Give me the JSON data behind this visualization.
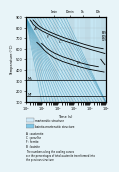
{
  "bg_color": "#e8f4f8",
  "plot_bg": "#d0eaf5",
  "xmin": 1,
  "xmax": 100000,
  "ymin": 100,
  "ymax": 900,
  "ylabel": "Temperature (°C)",
  "xlabel": "Time (s)",
  "grid_color": "#aaaaaa",
  "Ms_line": 300,
  "Mf_line": 150,
  "curve_color": "#000000",
  "cooling_line_color": "#4499bb",
  "fill_color": "#b8e0f0",
  "ms_fill_color": "#c8e8f5"
}
